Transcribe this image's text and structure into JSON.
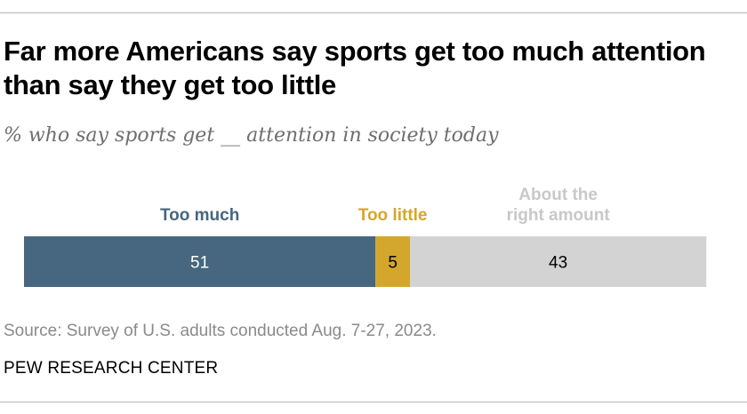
{
  "title": "Far more Americans say sports get too much attention than say they get too little",
  "subtitle": "% who say sports get __ attention in society today",
  "source": "Source: Survey of U.S. adults conducted Aug. 7-27, 2023.",
  "organization": "PEW RESEARCH CENTER",
  "colors": {
    "too_much": "#46677f",
    "too_little": "#d4a72c",
    "about_right": "#d3d3d3",
    "about_right_label": "#c8c8c8"
  },
  "chart_data": {
    "type": "bar",
    "orientation": "horizontal",
    "stacked": true,
    "title": "Far more Americans say sports get too much attention than say they get too little",
    "subtitle": "% who say sports get __ attention in society today",
    "categories": [
      "Too much",
      "Too little",
      "About the right amount"
    ],
    "category_label_lines": [
      [
        "Too much"
      ],
      [
        "Too little"
      ],
      [
        "About the",
        "right amount"
      ]
    ],
    "values": [
      51,
      5,
      43
    ],
    "value_labels": [
      "51",
      "5",
      "43"
    ],
    "series_colors": [
      "#46677f",
      "#d4a72c",
      "#d3d3d3"
    ],
    "label_colors": [
      "#46677f",
      "#d4a72c",
      "#c8c8c8"
    ],
    "value_label_colors": [
      "#ffffff",
      "#000000",
      "#000000"
    ],
    "unit": "%",
    "xlim": [
      0,
      100
    ],
    "legend": "above bar",
    "grid": false
  }
}
